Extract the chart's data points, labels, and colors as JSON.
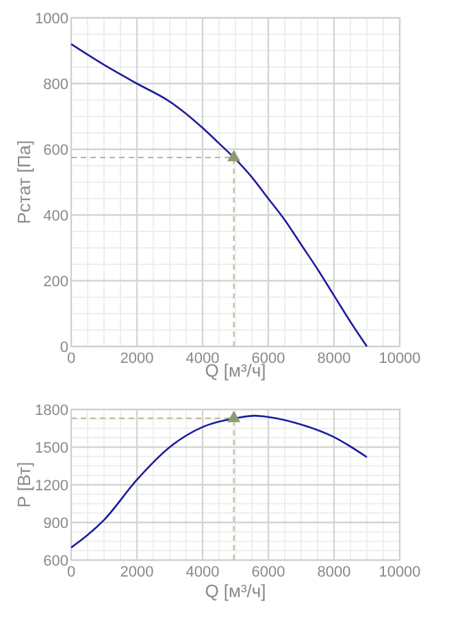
{
  "chart_data": [
    {
      "type": "line",
      "xlabel": "Q [м³/ч]",
      "ylabel": "Pстат [Па]",
      "xlim": [
        0,
        10000
      ],
      "ylim": [
        0,
        1000
      ],
      "xticks": [
        0,
        2000,
        4000,
        6000,
        8000,
        10000
      ],
      "yticks": [
        0,
        200,
        400,
        600,
        800,
        1000
      ],
      "grid": true,
      "series": [
        {
          "color": "#1c1c9c",
          "x": [
            0,
            1000,
            2000,
            3000,
            3500,
            4000,
            4500,
            5000,
            5500,
            6000,
            6500,
            7000,
            7500,
            8000,
            8500,
            9000
          ],
          "values": [
            920,
            857,
            800,
            745,
            708,
            665,
            618,
            570,
            515,
            450,
            385,
            310,
            235,
            155,
            75,
            0
          ]
        },
        {
          "type": "scatter",
          "marker": "triangle",
          "color": "#8c9c70",
          "x": [
            4950
          ],
          "values": [
            575
          ]
        }
      ],
      "ref_lines": [
        {
          "axis": "x",
          "value": 4950,
          "color": "#b8b890",
          "line_style": "dashed"
        },
        {
          "axis": "y",
          "value": 575,
          "color": "#b8b890",
          "line_style": "dashed"
        }
      ]
    },
    {
      "type": "line",
      "xlabel": "Q [м³/ч]",
      "ylabel": "P [Вт]",
      "xlim": [
        0,
        10000
      ],
      "ylim": [
        600,
        1800
      ],
      "xticks": [
        0,
        2000,
        4000,
        6000,
        8000,
        10000
      ],
      "yticks": [
        600,
        900,
        1200,
        1500,
        1800
      ],
      "grid": true,
      "series": [
        {
          "color": "#1c1c9c",
          "x": [
            0,
            500,
            1000,
            2000,
            3000,
            4000,
            5000,
            5600,
            6000,
            7000,
            8000,
            9000
          ],
          "values": [
            700,
            800,
            920,
            1240,
            1500,
            1660,
            1730,
            1750,
            1740,
            1680,
            1580,
            1420
          ]
        },
        {
          "type": "scatter",
          "marker": "triangle",
          "color": "#8c9c70",
          "x": [
            4950
          ],
          "values": [
            1730
          ]
        }
      ],
      "ref_lines": [
        {
          "axis": "x",
          "value": 4950,
          "color": "#b8b890",
          "line_style": "dashed"
        },
        {
          "axis": "y",
          "value": 1730,
          "color": "#b8b890",
          "line_style": "dashed"
        }
      ]
    }
  ]
}
